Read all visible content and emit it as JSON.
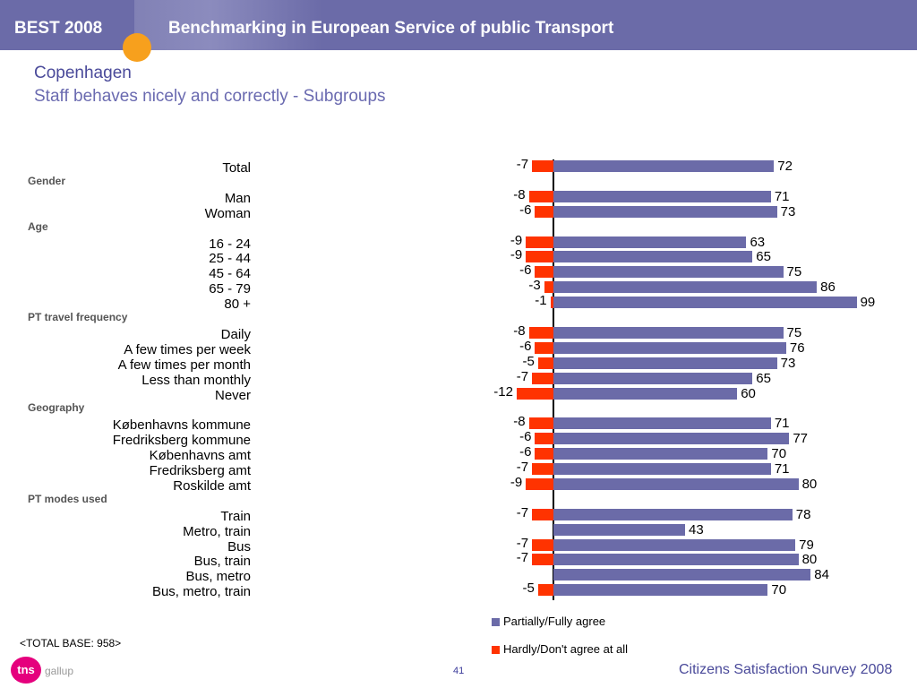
{
  "header": {
    "brand": "BEST 2008",
    "title": "Benchmarking in European Service of public Transport"
  },
  "city_title": "Copenhagen",
  "subtitle": "Staff behaves nicely and correctly - Subgroups",
  "colors": {
    "agree": "#6b6ba8",
    "disagree": "#ff3300",
    "header": "#6b6ba8",
    "accent": "#f7a01d"
  },
  "chart_data": {
    "type": "bar",
    "orientation": "horizontal-diverging",
    "title": "",
    "xlabel": "",
    "ylabel": "",
    "xlim": [
      -15,
      100
    ],
    "grid": false,
    "legend_placement": "bottom-center",
    "series": [
      {
        "name": "Partially/Fully agree",
        "color": "#6b6ba8"
      },
      {
        "name": "Hardly/Don't agree at all",
        "color": "#ff3300"
      }
    ],
    "rows": [
      {
        "group": "",
        "label": "Total",
        "agree": 72,
        "disagree": -7
      },
      {
        "group": "Gender",
        "label": "Man",
        "agree": 71,
        "disagree": -8
      },
      {
        "group": "",
        "label": "Woman",
        "agree": 73,
        "disagree": -6
      },
      {
        "group": "Age",
        "label": "16 - 24",
        "agree": 63,
        "disagree": -9
      },
      {
        "group": "",
        "label": "25 - 44",
        "agree": 65,
        "disagree": -9
      },
      {
        "group": "",
        "label": "45 - 64",
        "agree": 75,
        "disagree": -6
      },
      {
        "group": "",
        "label": "65 - 79",
        "agree": 86,
        "disagree": -3
      },
      {
        "group": "",
        "label": "80 +",
        "agree": 99,
        "disagree": -1
      },
      {
        "group": "PT travel frequency",
        "label": "Daily",
        "agree": 75,
        "disagree": -8
      },
      {
        "group": "",
        "label": "A few times per week",
        "agree": 76,
        "disagree": -6
      },
      {
        "group": "",
        "label": "A few times per month",
        "agree": 73,
        "disagree": -5
      },
      {
        "group": "",
        "label": "Less than monthly",
        "agree": 65,
        "disagree": -7
      },
      {
        "group": "",
        "label": "Never",
        "agree": 60,
        "disagree": -12
      },
      {
        "group": "Geography",
        "label": "Københavns kommune",
        "agree": 71,
        "disagree": -8
      },
      {
        "group": "",
        "label": "Fredriksberg kommune",
        "agree": 77,
        "disagree": -6
      },
      {
        "group": "",
        "label": "Københavns amt",
        "agree": 70,
        "disagree": -6
      },
      {
        "group": "",
        "label": "Fredriksberg amt",
        "agree": 71,
        "disagree": -7
      },
      {
        "group": "",
        "label": "Roskilde amt",
        "agree": 80,
        "disagree": -9
      },
      {
        "group": "PT modes used",
        "label": "Train",
        "agree": 78,
        "disagree": -7
      },
      {
        "group": "",
        "label": "Metro, train",
        "agree": 43,
        "disagree": null
      },
      {
        "group": "",
        "label": "Bus",
        "agree": 79,
        "disagree": -7
      },
      {
        "group": "",
        "label": "Bus, train",
        "agree": 80,
        "disagree": -7
      },
      {
        "group": "",
        "label": "Bus, metro",
        "agree": 84,
        "disagree": null
      },
      {
        "group": "",
        "label": "Bus, metro, train",
        "agree": 70,
        "disagree": -5
      }
    ]
  },
  "footer": {
    "base_note": "<TOTAL BASE: 958>",
    "page_number": "41",
    "survey": "Citizens Satisfaction Survey 2008",
    "logo_text": "tns",
    "logo_sub": "gallup"
  }
}
